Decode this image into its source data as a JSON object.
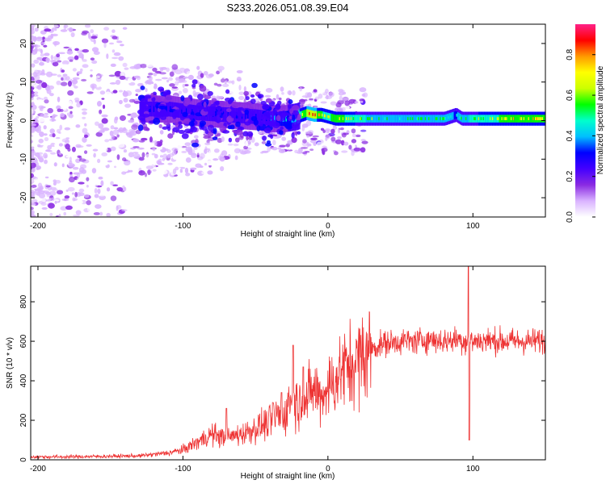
{
  "figure_title": "S233.2026.051.08.39.E04",
  "chart_data": [
    {
      "type": "heatmap",
      "xlabel": "Height of straight line (km)",
      "ylabel": "Frequency (Hz)",
      "xlim": [
        -205,
        150
      ],
      "ylim": [
        -25,
        25
      ],
      "xticks": [
        -200,
        -100,
        0,
        100
      ],
      "yticks": [
        -20,
        -10,
        0,
        10,
        20
      ],
      "xtick_labels": [
        "-200",
        "-100",
        "0",
        "100"
      ],
      "ytick_labels": [
        "-20",
        "-10",
        "0",
        "10",
        "20"
      ],
      "colorbar": {
        "label": "Normalized spectral amplitude",
        "range": [
          0,
          0.95
        ],
        "ticks": [
          0,
          0.2,
          0.4,
          0.6,
          0.8
        ],
        "tick_labels": [
          "0.0",
          "0.2",
          "0.4",
          "0.6",
          "0.8"
        ],
        "colormap": [
          "#ffffff",
          "#d9b3ff",
          "#8a2be2",
          "#4400ff",
          "#0000ff",
          "#00bfff",
          "#00ffcc",
          "#00ff00",
          "#ccff00",
          "#ffff00",
          "#ff9900",
          "#ff0000",
          "#ff2288"
        ]
      },
      "signal_band": {
        "description_free": true,
        "x": [
          -130,
          -110,
          -90,
          -70,
          -50,
          -40,
          -30,
          -22,
          -15,
          -10,
          -5,
          0,
          5,
          20,
          50,
          80,
          88,
          92,
          100,
          120,
          150
        ],
        "center_hz": [
          3,
          3,
          2,
          1.5,
          1,
          0.5,
          0.5,
          1,
          2,
          1.5,
          1.5,
          1,
          0.5,
          0.5,
          0.5,
          0.5,
          1.5,
          0.5,
          0.5,
          0.5,
          0.5
        ],
        "amplitude": [
          0.3,
          0.3,
          0.3,
          0.3,
          0.3,
          0.35,
          0.4,
          0.55,
          0.8,
          0.85,
          0.7,
          0.65,
          0.75,
          0.6,
          0.5,
          0.55,
          0.45,
          0.55,
          0.6,
          0.7,
          0.75
        ]
      }
    },
    {
      "type": "line",
      "xlabel": "Height of straight line (km)",
      "ylabel": "SNR (10 * v/v)",
      "xlim": [
        -205,
        150
      ],
      "ylim": [
        0,
        980
      ],
      "xticks": [
        -200,
        -100,
        0,
        100
      ],
      "yticks": [
        0,
        200,
        400,
        600,
        800
      ],
      "xtick_labels": [
        "-200",
        "-100",
        "0",
        "100"
      ],
      "ytick_labels": [
        "0",
        "200",
        "400",
        "600",
        "800"
      ],
      "color": "#ee3333",
      "series": [
        {
          "name": "SNR",
          "x": [
            -205,
            -180,
            -150,
            -130,
            -110,
            -100,
            -90,
            -80,
            -70,
            -60,
            -50,
            -40,
            -35,
            -30,
            -25,
            -22,
            -20,
            -17,
            -15,
            -10,
            -5,
            0,
            5,
            10,
            15,
            20,
            25,
            30,
            35,
            40,
            50,
            60,
            70,
            80,
            90,
            95,
            97,
            99,
            100,
            110,
            120,
            130,
            140,
            150
          ],
          "values": [
            15,
            15,
            18,
            20,
            35,
            50,
            90,
            130,
            110,
            130,
            160,
            190,
            230,
            220,
            330,
            300,
            280,
            330,
            300,
            360,
            320,
            370,
            400,
            460,
            470,
            500,
            530,
            560,
            580,
            590,
            600,
            600,
            610,
            600,
            610,
            600,
            610,
            600,
            600,
            605,
            600,
            600,
            600,
            605
          ]
        }
      ],
      "features": {
        "spike_x": [
          -70,
          -38,
          -32,
          -24,
          -17,
          97
        ],
        "spike_y": [
          260,
          290,
          340,
          580,
          470,
          990
        ],
        "dip_x": [
          97
        ],
        "dip_y": [
          100
        ]
      }
    }
  ]
}
